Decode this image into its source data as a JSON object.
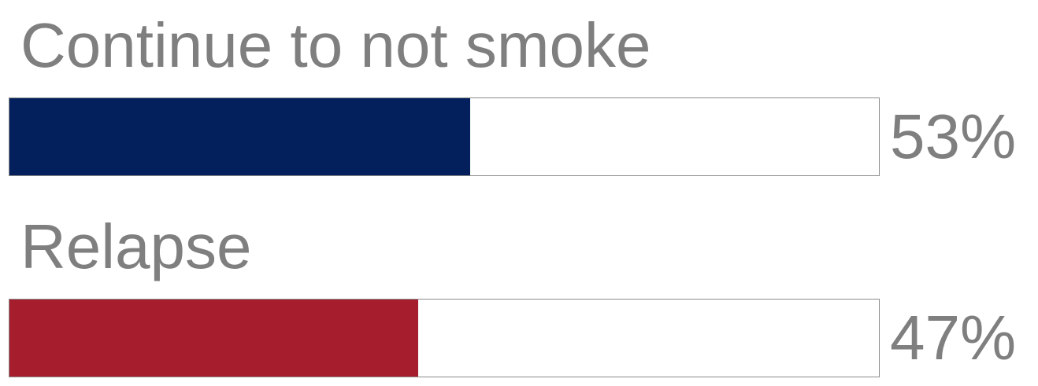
{
  "chart_data": {
    "type": "bar",
    "categories": [
      "Continue to not smoke",
      "Relapse"
    ],
    "values": [
      53,
      47
    ],
    "value_labels": [
      "53%",
      "47%"
    ],
    "ylim": [
      0,
      100
    ],
    "colors": [
      "#04205c",
      "#a61e2e"
    ],
    "grid": false,
    "legend": "none"
  }
}
